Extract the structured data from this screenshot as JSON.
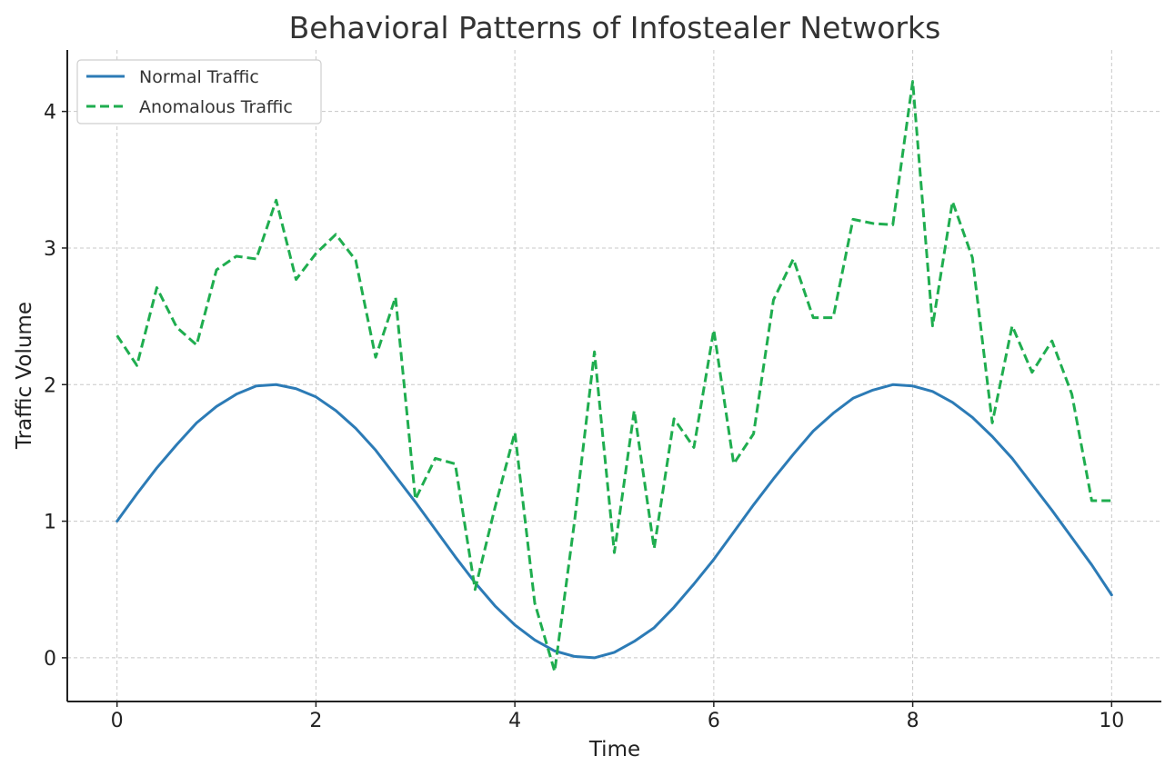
{
  "chart_data": {
    "type": "line",
    "title": "Behavioral Patterns of Infostealer Networks",
    "xlabel": "Time",
    "ylabel": "Traffic Volume",
    "xlim": [
      -0.5,
      10.5
    ],
    "ylim": [
      -0.32,
      4.45
    ],
    "xticks": [
      0,
      2,
      4,
      6,
      8,
      10
    ],
    "yticks": [
      0,
      1,
      2,
      3,
      4
    ],
    "grid": true,
    "legend_position": "top-left",
    "series": [
      {
        "name": "Normal Traffic",
        "color": "#2c7bb6",
        "style": "solid",
        "x": [
          0,
          0.2,
          0.4,
          0.6,
          0.8,
          1.0,
          1.2,
          1.4,
          1.6,
          1.8,
          2.0,
          2.2,
          2.4,
          2.6,
          2.8,
          3.0,
          3.2,
          3.4,
          3.6,
          3.8,
          4.0,
          4.2,
          4.4,
          4.6,
          4.8,
          5.0,
          5.2,
          5.4,
          5.6,
          5.8,
          6.0,
          6.2,
          6.4,
          6.6,
          6.8,
          7.0,
          7.2,
          7.4,
          7.6,
          7.8,
          8.0,
          8.2,
          8.4,
          8.6,
          8.8,
          9.0,
          9.2,
          9.4,
          9.6,
          9.8,
          10.0
        ],
        "values": [
          1.0,
          1.2,
          1.39,
          1.56,
          1.72,
          1.84,
          1.93,
          1.99,
          2.0,
          1.97,
          1.91,
          1.81,
          1.68,
          1.52,
          1.33,
          1.14,
          0.94,
          0.74,
          0.55,
          0.38,
          0.24,
          0.13,
          0.05,
          0.01,
          0.0,
          0.04,
          0.12,
          0.22,
          0.37,
          0.54,
          0.72,
          0.92,
          1.12,
          1.31,
          1.49,
          1.66,
          1.79,
          1.9,
          1.96,
          2.0,
          1.99,
          1.95,
          1.87,
          1.76,
          1.62,
          1.46,
          1.27,
          1.08,
          0.88,
          0.68,
          0.46
        ]
      },
      {
        "name": "Anomalous Traffic",
        "color": "#1fad4f",
        "style": "dashed",
        "x": [
          0,
          0.2,
          0.4,
          0.6,
          0.8,
          1.0,
          1.2,
          1.4,
          1.6,
          1.8,
          2.0,
          2.2,
          2.4,
          2.6,
          2.8,
          3.0,
          3.2,
          3.4,
          3.6,
          3.8,
          4.0,
          4.2,
          4.4,
          4.6,
          4.8,
          5.0,
          5.2,
          5.4,
          5.6,
          5.8,
          6.0,
          6.2,
          6.4,
          6.6,
          6.8,
          7.0,
          7.2,
          7.4,
          7.6,
          7.8,
          8.0,
          8.2,
          8.4,
          8.6,
          8.8,
          9.0,
          9.2,
          9.4,
          9.6,
          9.8,
          10.0
        ],
        "values": [
          2.36,
          2.14,
          2.71,
          2.42,
          2.29,
          2.84,
          2.94,
          2.92,
          3.35,
          2.77,
          2.96,
          3.1,
          2.91,
          2.2,
          2.64,
          1.16,
          1.46,
          1.42,
          0.5,
          1.1,
          1.65,
          0.4,
          -0.1,
          1.0,
          2.24,
          0.77,
          1.81,
          0.8,
          1.75,
          1.54,
          2.4,
          1.42,
          1.64,
          2.62,
          2.92,
          2.49,
          2.49,
          3.21,
          3.18,
          3.17,
          4.22,
          2.43,
          3.34,
          2.93,
          1.72,
          2.43,
          2.09,
          2.32,
          1.93,
          1.15,
          1.15
        ]
      }
    ]
  }
}
